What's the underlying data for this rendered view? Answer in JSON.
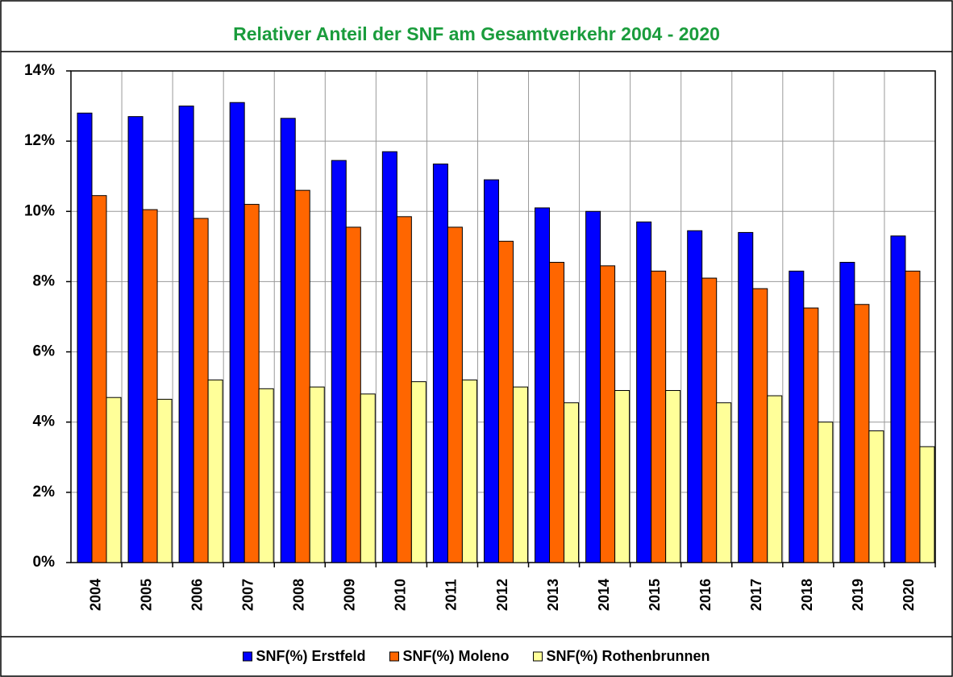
{
  "chart_data": {
    "type": "bar",
    "title": "Relativer Anteil der SNF am Gesamtverkehr 2004 - 2020",
    "categories": [
      "2004",
      "2005",
      "2006",
      "2007",
      "2008",
      "2009",
      "2010",
      "2011",
      "2012",
      "2013",
      "2014",
      "2015",
      "2016",
      "2017",
      "2018",
      "2019",
      "2020"
    ],
    "series": [
      {
        "name": "SNF(%) Erstfeld",
        "color": "#0000ff",
        "values": [
          12.8,
          12.7,
          13.0,
          13.1,
          12.65,
          11.45,
          11.7,
          11.35,
          10.9,
          10.1,
          10.0,
          9.7,
          9.45,
          9.4,
          8.3,
          8.55,
          9.3
        ]
      },
      {
        "name": "SNF(%) Moleno",
        "color": "#ff6600",
        "values": [
          10.45,
          10.05,
          9.8,
          10.2,
          10.6,
          9.55,
          9.85,
          9.55,
          9.15,
          8.55,
          8.45,
          8.3,
          8.1,
          7.8,
          7.25,
          7.35,
          8.3
        ]
      },
      {
        "name": "SNF(%) Rothenbrunnen",
        "color": "#ffff99",
        "values": [
          4.7,
          4.65,
          5.2,
          4.95,
          5.0,
          4.8,
          5.15,
          5.2,
          5.0,
          4.55,
          4.9,
          4.9,
          4.55,
          4.75,
          4.0,
          3.75,
          3.3
        ]
      }
    ],
    "ylim": [
      0,
      14
    ],
    "yticks": [
      {
        "value": 0,
        "label": "0%"
      },
      {
        "value": 2,
        "label": "2%"
      },
      {
        "value": 4,
        "label": "4%"
      },
      {
        "value": 6,
        "label": "6%"
      },
      {
        "value": 8,
        "label": "8%"
      },
      {
        "value": 10,
        "label": "10%"
      },
      {
        "value": 12,
        "label": "12%"
      },
      {
        "value": 14,
        "label": "14%"
      }
    ],
    "grid": true,
    "legend": "bottom"
  }
}
